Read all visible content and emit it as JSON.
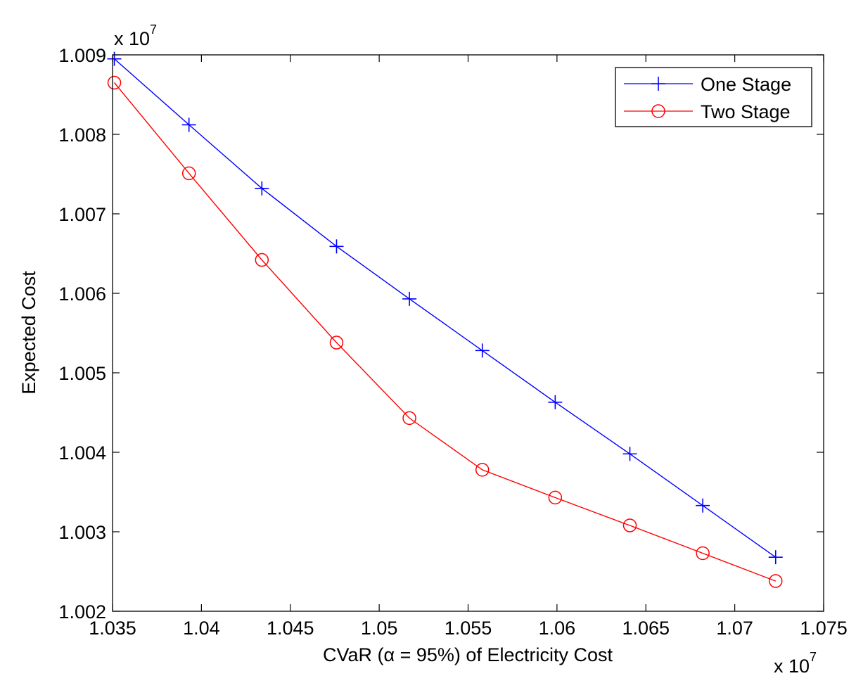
{
  "chart_data": {
    "type": "line",
    "title": "",
    "xlabel": "CVaR (α = 95%) of Electricity Cost",
    "ylabel": "Expected Cost",
    "xlim": [
      1.035,
      1.075
    ],
    "ylim": [
      1.002,
      1.009
    ],
    "x_multiplier": {
      "base": "x 10",
      "exp": "7"
    },
    "y_multiplier": {
      "base": "x 10",
      "exp": "7"
    },
    "x_ticks": [
      1.035,
      1.04,
      1.045,
      1.05,
      1.055,
      1.06,
      1.065,
      1.07,
      1.075
    ],
    "x_tick_labels": [
      "1.035",
      "1.04",
      "1.045",
      "1.05",
      "1.055",
      "1.06",
      "1.065",
      "1.07",
      "1.075"
    ],
    "y_ticks": [
      1.002,
      1.003,
      1.004,
      1.005,
      1.006,
      1.007,
      1.008,
      1.009
    ],
    "y_tick_labels": [
      "1.002",
      "1.003",
      "1.004",
      "1.005",
      "1.006",
      "1.007",
      "1.008",
      "1.009"
    ],
    "grid": false,
    "legend_position": "top-right",
    "series": [
      {
        "name": "One Stage",
        "color": "#0000ff",
        "marker": "plus",
        "x": [
          1.0351,
          1.0393,
          1.0434,
          1.0476,
          1.0517,
          1.0558,
          1.0599,
          1.0641,
          1.0682,
          1.0723
        ],
        "y": [
          1.00895,
          1.00812,
          1.00732,
          1.00659,
          1.00593,
          1.00528,
          1.00463,
          1.00398,
          1.00333,
          1.00268
        ]
      },
      {
        "name": "Two Stage",
        "color": "#ff0000",
        "marker": "circle",
        "x": [
          1.0351,
          1.0393,
          1.0434,
          1.0476,
          1.0517,
          1.0558,
          1.0599,
          1.0641,
          1.0682,
          1.0723
        ],
        "y": [
          1.00865,
          1.00751,
          1.00642,
          1.00538,
          1.00443,
          1.00378,
          1.00343,
          1.00308,
          1.00273,
          1.00238
        ]
      }
    ]
  }
}
